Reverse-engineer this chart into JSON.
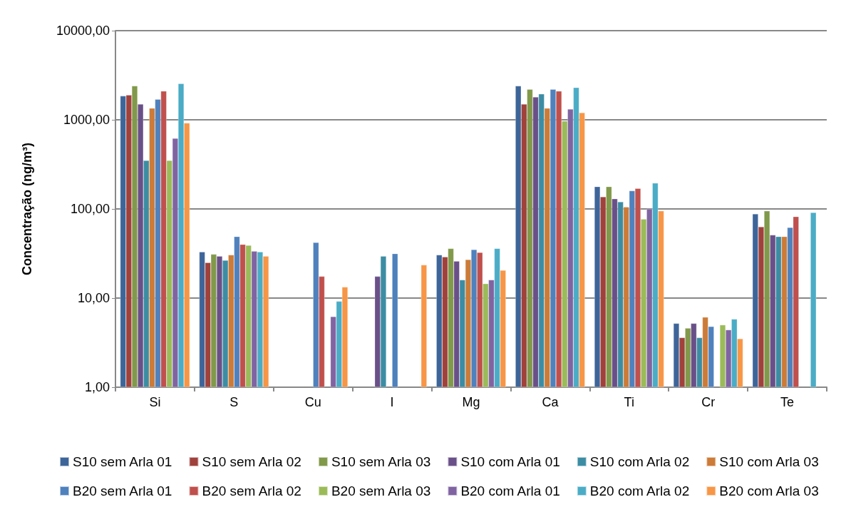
{
  "chart_data": {
    "type": "bar",
    "ylabel": "Concentração (ng/m³)",
    "log": "y",
    "grid": "y",
    "legend": "bottom",
    "categories": [
      "Si",
      "S",
      "Cu",
      "I",
      "Mg",
      "Ca",
      "Ti",
      "Cr",
      "Te"
    ],
    "ylim": [
      1,
      10000
    ],
    "yticks": [
      {
        "value": 1,
        "label": "1,00"
      },
      {
        "value": 10,
        "label": "10,00"
      },
      {
        "value": 100,
        "label": "100,00"
      },
      {
        "value": 1000,
        "label": "1000,00"
      },
      {
        "value": 10000,
        "label": "10000,00"
      }
    ],
    "series": [
      {
        "name": "S10 sem Arla 01",
        "color": "#3e6599",
        "values": [
          1850,
          33,
          null,
          null,
          30.5,
          2400,
          178,
          5.2,
          88
        ]
      },
      {
        "name": "S10 sem Arla 02",
        "color": "#a0413c",
        "values": [
          1900,
          25,
          null,
          null,
          29,
          1500,
          137,
          3.6,
          63
        ]
      },
      {
        "name": "S10 sem Arla 03",
        "color": "#81994a",
        "values": [
          2400,
          31,
          null,
          null,
          36,
          2200,
          178,
          4.6,
          95
        ]
      },
      {
        "name": "S10 com Arla 01",
        "color": "#6a5088",
        "values": [
          1500,
          29.5,
          null,
          17.5,
          26,
          1800,
          130,
          5.2,
          51
        ]
      },
      {
        "name": "S10 com Arla 02",
        "color": "#3c8da3",
        "values": [
          350,
          26.5,
          null,
          29.5,
          16,
          1950,
          120,
          3.6,
          49
        ]
      },
      {
        "name": "S10 com Arla 03",
        "color": "#cc7b38",
        "values": [
          1350,
          30.5,
          null,
          null,
          27,
          1350,
          105,
          6.1,
          49
        ]
      },
      {
        "name": "B20 sem Arla 01",
        "color": "#4f81bd",
        "values": [
          1700,
          49,
          42,
          31.5,
          35,
          2200,
          160,
          4.8,
          62
        ]
      },
      {
        "name": "B20 sem Arla 02",
        "color": "#c0504d",
        "values": [
          2100,
          40,
          17.5,
          null,
          32.5,
          2100,
          170,
          null,
          82
        ]
      },
      {
        "name": "B20 sem Arla 03",
        "color": "#9bbb59",
        "values": [
          350,
          39,
          null,
          null,
          14.5,
          970,
          77,
          5,
          null
        ]
      },
      {
        "name": "B20 com Arla 01",
        "color": "#8064a2",
        "values": [
          620,
          33.5,
          6.2,
          null,
          16,
          1320,
          100,
          4.4,
          null
        ]
      },
      {
        "name": "B20 com Arla 02",
        "color": "#4bacc6",
        "values": [
          2550,
          33,
          9.2,
          null,
          36,
          2300,
          195,
          5.8,
          91
        ]
      },
      {
        "name": "B20 com Arla 03",
        "color": "#f79646",
        "values": [
          920,
          29.5,
          13.3,
          23.5,
          20.5,
          1200,
          95,
          3.5,
          null
        ]
      }
    ]
  }
}
